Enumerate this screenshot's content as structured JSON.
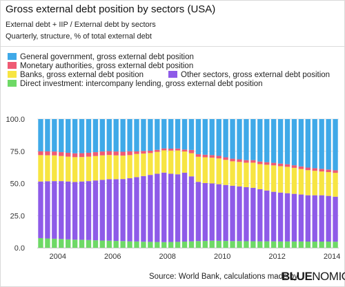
{
  "header": {
    "title": "Gross external debt position by sectors (USA)",
    "subtitle_1": "External debt + IIP / External debt by sectors",
    "subtitle_2": "Quarterly, structure, % of total external debt"
  },
  "legend": [
    {
      "label": "General government, gross external debt position",
      "color": "#3fa9e8"
    },
    {
      "label": "Monetary authorities, gross external debt position",
      "color": "#ef5a73"
    },
    {
      "label": "Banks, gross external debt position",
      "color": "#f7e542"
    },
    {
      "label": "Other sectors, gross external debt position",
      "color": "#8e5be8"
    },
    {
      "label": "Direct investment: intercompany lending, gross external debt position",
      "color": "#6ed966"
    }
  ],
  "footer": {
    "source": "Source: World Bank, calculations made by",
    "brand_bold": "BLUE",
    "brand_light": "NOMICS"
  },
  "chart_data": {
    "type": "bar",
    "stacked": true,
    "x_tick_labels": [
      "2004",
      "2006",
      "2008",
      "2010",
      "2012",
      "2014"
    ],
    "y_tick_labels": [
      "0.0",
      "25.0",
      "50.0",
      "75.0",
      "100.0"
    ],
    "ylim": [
      0,
      100
    ],
    "grid": true,
    "categories": [
      "2003Q2",
      "2003Q3",
      "2003Q4",
      "2004Q1",
      "2004Q2",
      "2004Q3",
      "2004Q4",
      "2005Q1",
      "2005Q2",
      "2005Q3",
      "2005Q4",
      "2006Q1",
      "2006Q2",
      "2006Q3",
      "2006Q4",
      "2007Q1",
      "2007Q2",
      "2007Q3",
      "2007Q4",
      "2008Q1",
      "2008Q2",
      "2008Q3",
      "2008Q4",
      "2009Q1",
      "2009Q2",
      "2009Q3",
      "2009Q4",
      "2010Q1",
      "2010Q2",
      "2010Q3",
      "2010Q4",
      "2011Q1",
      "2011Q2",
      "2011Q3",
      "2011Q4",
      "2012Q1",
      "2012Q2",
      "2012Q3",
      "2012Q4",
      "2013Q1",
      "2013Q2",
      "2013Q3",
      "2013Q4",
      "2014Q1"
    ],
    "series": [
      {
        "name": "Direct investment: intercompany lending, gross external debt position",
        "color": "#6ed966",
        "values": [
          7.5,
          7.2,
          7.0,
          6.8,
          6.5,
          6.3,
          6.2,
          6.0,
          5.8,
          5.6,
          5.5,
          5.3,
          5.2,
          5.0,
          4.9,
          4.7,
          4.6,
          4.5,
          4.4,
          4.5,
          4.6,
          4.8,
          5.0,
          5.2,
          5.3,
          5.5,
          5.4,
          5.3,
          5.2,
          5.2,
          5.1,
          5.1,
          5.0,
          5.0,
          5.0,
          4.9,
          4.9,
          4.9,
          4.9,
          4.8,
          4.8,
          4.8,
          4.8,
          4.7
        ]
      },
      {
        "name": "Other sectors, gross external debt position",
        "color": "#8e5be8",
        "values": [
          44.0,
          44.5,
          44.8,
          45.0,
          45.0,
          44.8,
          45.3,
          45.8,
          46.5,
          47.2,
          47.8,
          48.0,
          48.2,
          49.0,
          50.0,
          51.0,
          52.0,
          53.0,
          54.0,
          53.0,
          52.5,
          53.5,
          50.5,
          46.0,
          45.0,
          44.5,
          44.0,
          43.5,
          43.0,
          42.5,
          42.0,
          41.5,
          40.5,
          39.5,
          38.5,
          38.0,
          37.5,
          37.0,
          36.5,
          36.0,
          36.0,
          36.0,
          35.5,
          35.0
        ]
      },
      {
        "name": "Banks, gross external debt position",
        "color": "#f7e542",
        "values": [
          20.5,
          20.2,
          20.0,
          19.5,
          19.3,
          19.3,
          19.0,
          19.0,
          19.0,
          19.0,
          18.8,
          18.5,
          18.2,
          18.0,
          18.0,
          17.5,
          17.0,
          17.0,
          17.3,
          18.0,
          18.5,
          16.5,
          18.0,
          19.5,
          20.0,
          20.0,
          20.0,
          19.5,
          19.0,
          19.0,
          19.0,
          19.5,
          19.5,
          20.0,
          20.5,
          20.5,
          20.5,
          20.2,
          19.8,
          19.5,
          19.0,
          18.5,
          18.5,
          18.5
        ]
      },
      {
        "name": "Monetary authorities, gross external debt position",
        "color": "#ef5a73",
        "values": [
          3.0,
          3.0,
          3.0,
          3.0,
          3.0,
          3.0,
          3.0,
          3.0,
          3.0,
          3.0,
          3.0,
          3.0,
          3.0,
          3.0,
          2.0,
          2.0,
          1.8,
          1.6,
          1.5,
          1.5,
          1.5,
          1.5,
          2.5,
          2.0,
          2.0,
          2.0,
          2.0,
          2.0,
          2.0,
          2.0,
          2.0,
          2.0,
          2.0,
          2.0,
          2.0,
          2.0,
          2.0,
          2.0,
          2.0,
          2.0,
          2.0,
          2.0,
          2.0,
          2.0
        ]
      },
      {
        "name": "General government, gross external debt position",
        "color": "#3fa9e8",
        "values": [
          25.0,
          25.1,
          25.2,
          25.7,
          26.2,
          26.6,
          26.5,
          26.2,
          25.7,
          25.2,
          24.9,
          25.2,
          25.4,
          25.0,
          25.1,
          24.8,
          24.6,
          23.9,
          22.8,
          23.0,
          22.9,
          23.7,
          24.0,
          27.3,
          27.7,
          28.0,
          28.6,
          29.7,
          30.8,
          31.3,
          31.9,
          31.9,
          33.0,
          33.5,
          34.0,
          34.6,
          35.1,
          35.9,
          36.8,
          37.7,
          38.2,
          38.7,
          39.2,
          39.8
        ]
      }
    ]
  }
}
